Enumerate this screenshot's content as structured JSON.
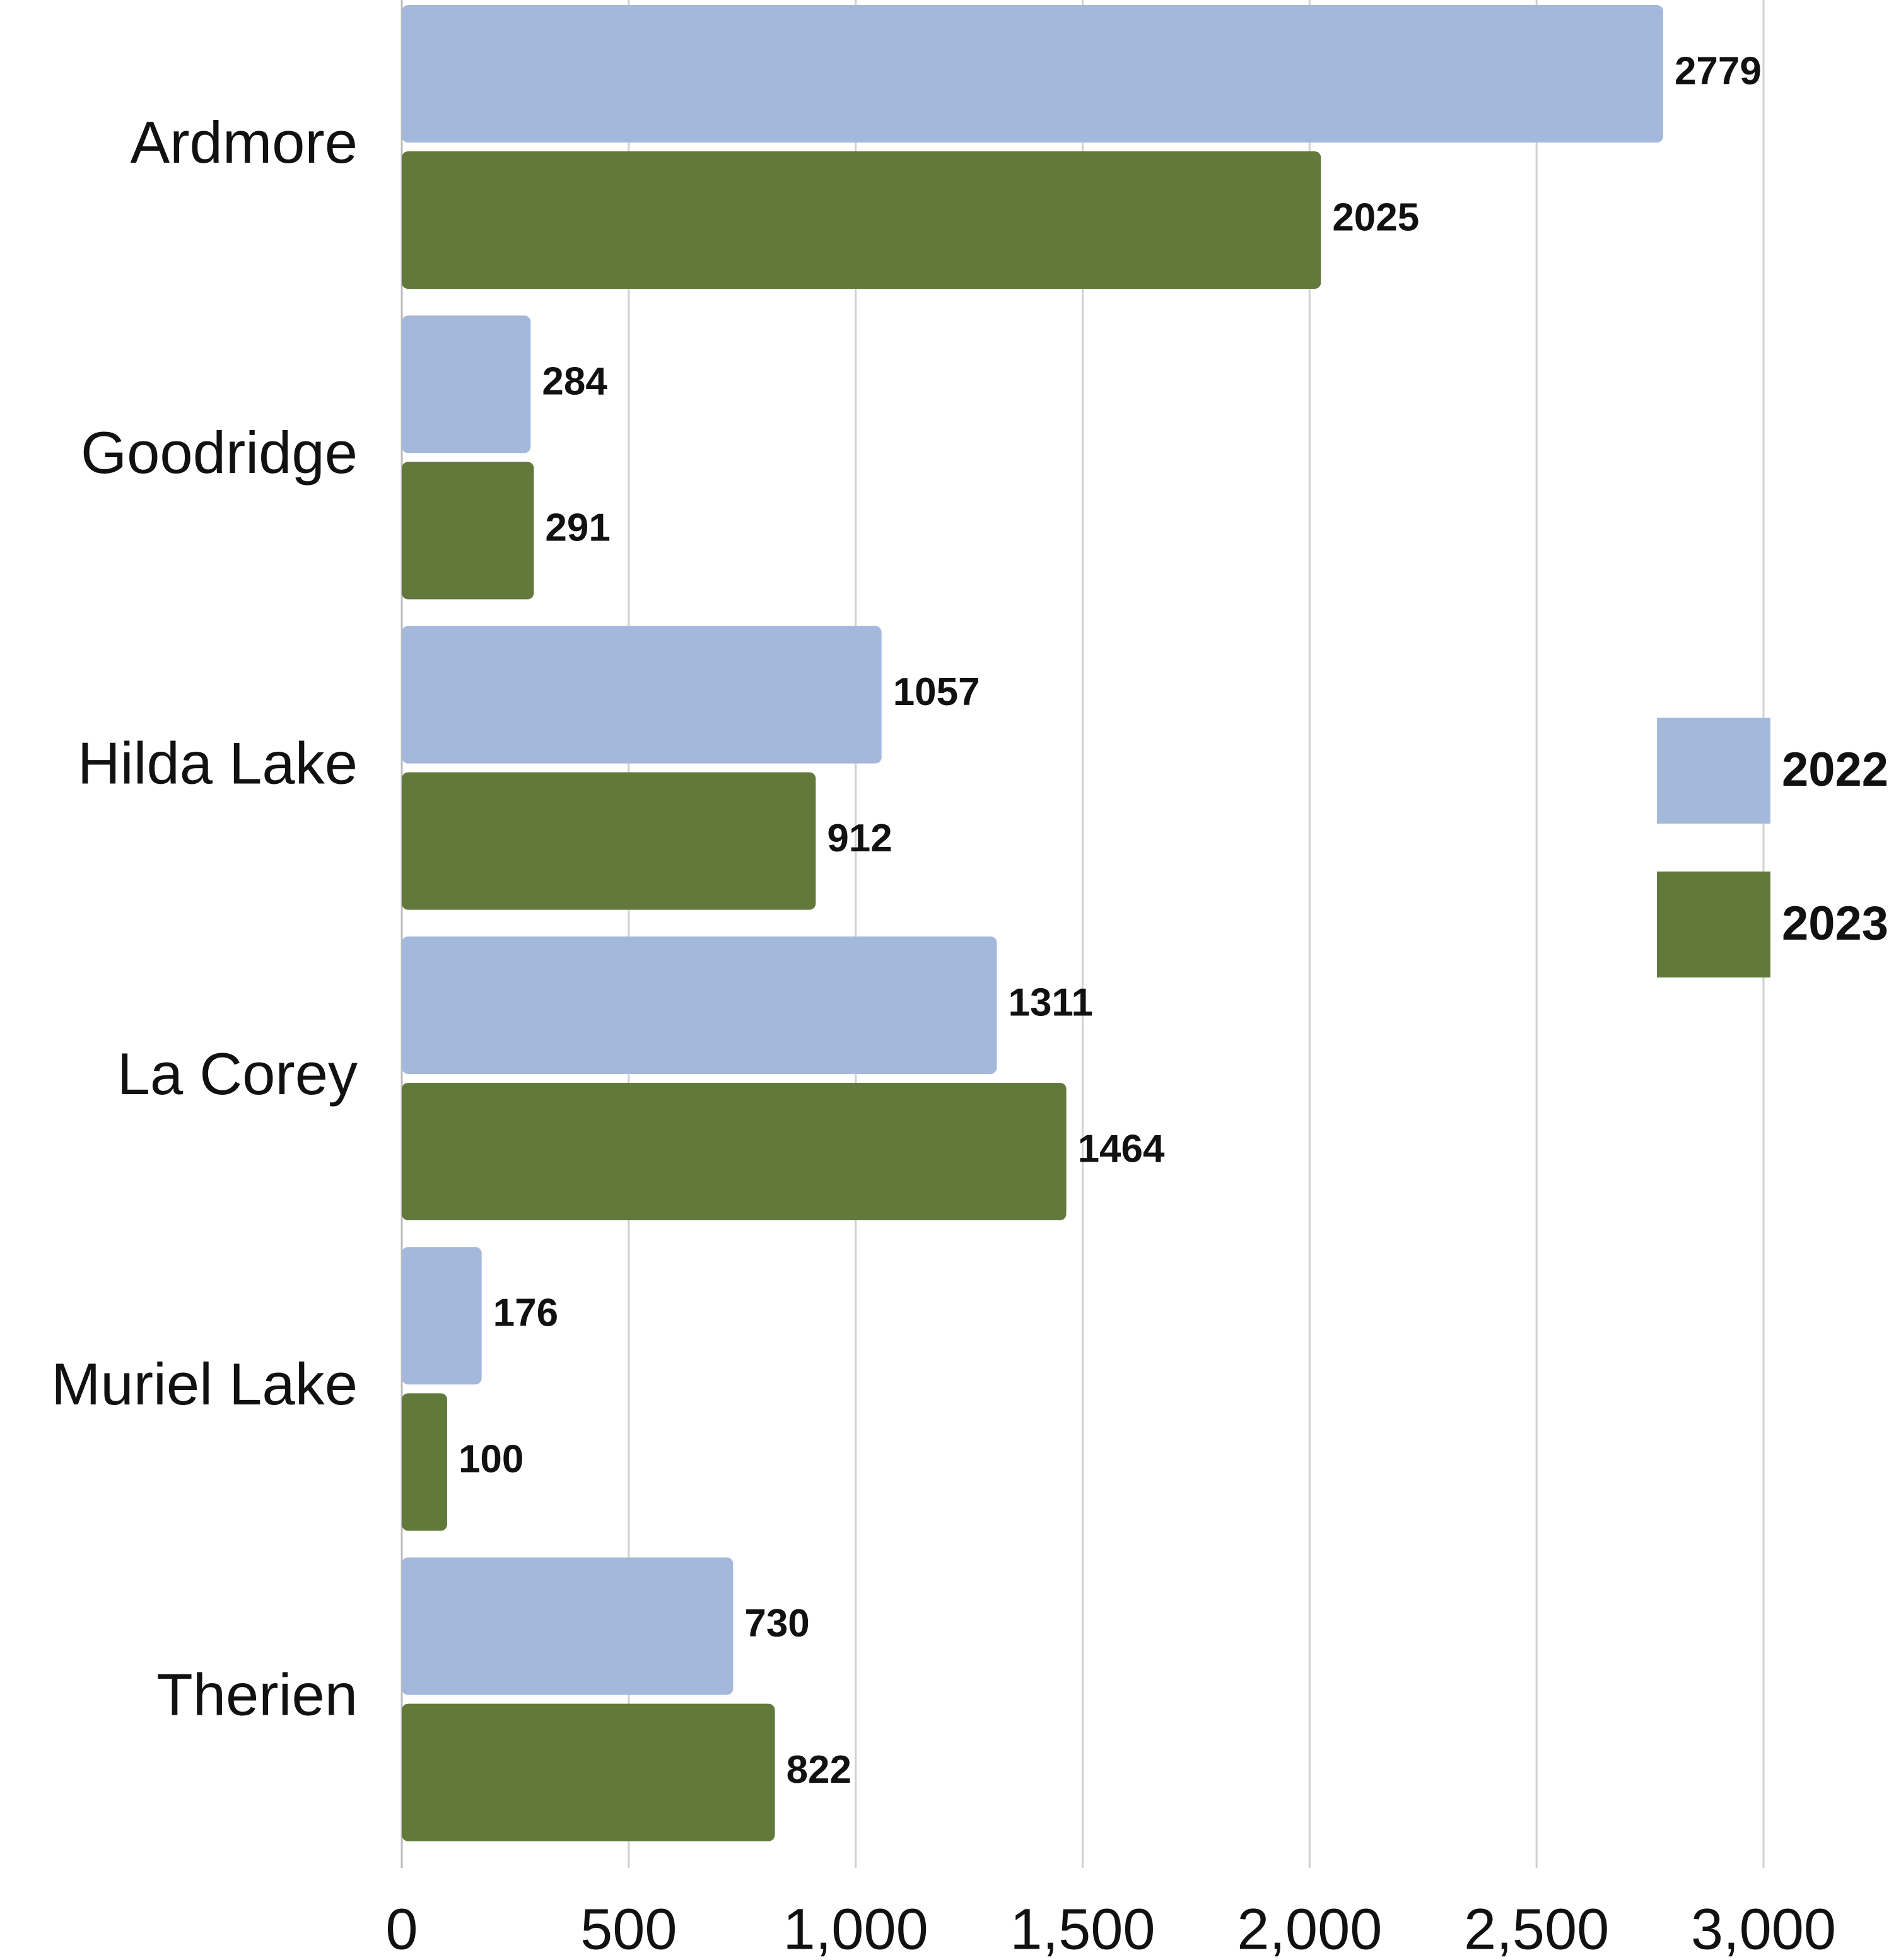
{
  "chart_data": {
    "type": "bar",
    "orientation": "horizontal",
    "categories": [
      "Ardmore",
      "Goodridge",
      "Hilda Lake",
      "La Corey",
      "Muriel Lake",
      "Therien"
    ],
    "series": [
      {
        "name": "2022",
        "color": "#a4b8db",
        "values": [
          2779,
          284,
          1057,
          1311,
          176,
          730
        ]
      },
      {
        "name": "2023",
        "color": "#62793c",
        "values": [
          2025,
          291,
          912,
          1464,
          100,
          822
        ]
      }
    ],
    "xlim": [
      0,
      3000
    ],
    "xticks": [
      0,
      500,
      {
        "value": 1000,
        "label": "1,000"
      },
      {
        "value": 1500,
        "label": "1,500"
      },
      {
        "value": 2000,
        "label": "2,000"
      },
      {
        "value": 2500,
        "label": "2,500"
      },
      {
        "value": 3000,
        "label": "3,000"
      }
    ],
    "grid": true,
    "legend": "right"
  }
}
